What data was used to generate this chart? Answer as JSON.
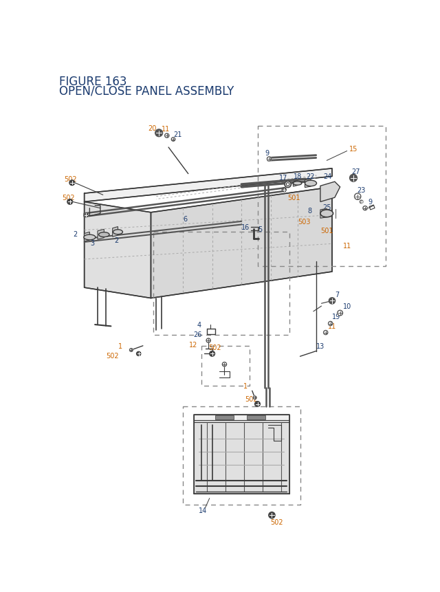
{
  "title_line1": "FIGURE 163",
  "title_line2": "OPEN/CLOSE PANEL ASSEMBLY",
  "title_color": "#1a3a6e",
  "title_fontsize": 12,
  "bg_color": "#ffffff",
  "oc": "#cc6600",
  "bc": "#1a3a6e",
  "dc": "#3a3a3a",
  "lc": "#888888"
}
